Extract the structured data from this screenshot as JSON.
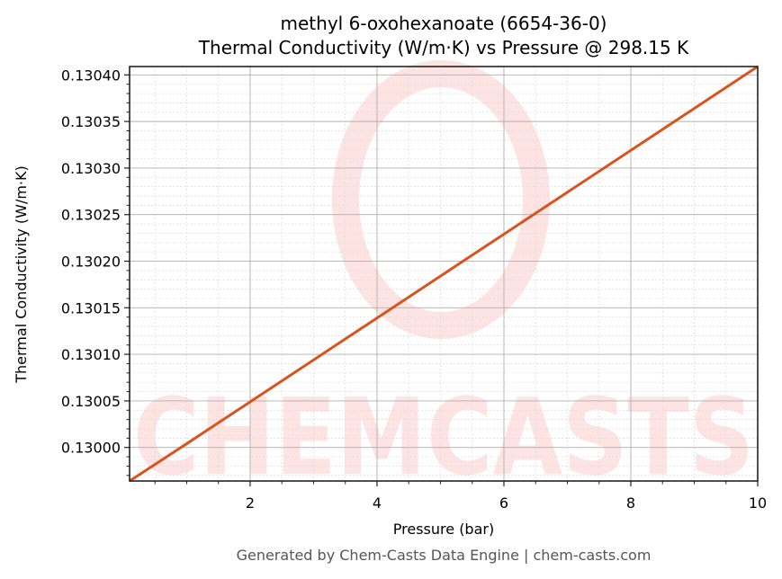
{
  "chart_data": {
    "type": "line",
    "title": "methyl 6-oxohexanoate (6654-36-0)",
    "subtitle": "Thermal Conductivity (W/m·K) vs Pressure @ 298.15 K",
    "xlabel": "Pressure (bar)",
    "ylabel": "Thermal Conductivity (W/m·K)",
    "xlim": [
      0.1,
      10
    ],
    "ylim": [
      0.129964,
      0.130409
    ],
    "x_ticks": [
      2,
      4,
      6,
      8,
      10
    ],
    "x_tick_labels": [
      "2",
      "4",
      "6",
      "8",
      "10"
    ],
    "y_ticks": [
      0.13,
      0.13005,
      0.1301,
      0.13015,
      0.1302,
      0.13025,
      0.1303,
      0.13035,
      0.1304
    ],
    "y_tick_labels": [
      "0.13000",
      "0.13005",
      "0.13010",
      "0.13015",
      "0.13020",
      "0.13025",
      "0.13030",
      "0.13035",
      "0.13040"
    ],
    "grid": true,
    "legend": null,
    "series": [
      {
        "name": "Thermal Conductivity",
        "color": "#d9531e",
        "x": [
          0.1,
          1,
          2,
          3,
          4,
          5,
          6,
          7,
          8,
          9,
          10
        ],
        "values": [
          0.129964,
          0.130004,
          0.130049,
          0.130094,
          0.130139,
          0.130184,
          0.130229,
          0.130274,
          0.130319,
          0.130364,
          0.130409
        ]
      }
    ],
    "watermark": "CHEMCASTS"
  },
  "footer": "Generated by Chem-Casts Data Engine | chem-casts.com"
}
